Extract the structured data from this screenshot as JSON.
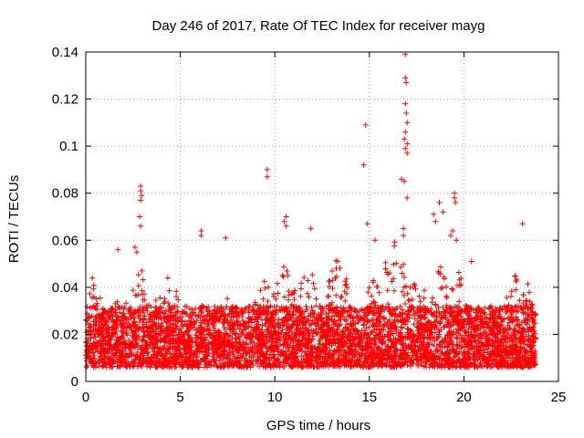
{
  "chart_data": {
    "type": "scatter",
    "title": "Day 246 of 2017, Rate Of TEC Index for receiver mayg",
    "xlabel": "GPS time / hours",
    "ylabel": "ROTI / TECUs",
    "xlim": [
      0,
      25
    ],
    "ylim": [
      0,
      0.14
    ],
    "xticks": [
      0,
      5,
      10,
      15,
      20,
      25
    ],
    "yticks": [
      0,
      0.02,
      0.04,
      0.06,
      0.08,
      0.1,
      0.12,
      0.14
    ],
    "xtick_labels": [
      "0",
      "5",
      "10",
      "15",
      "20",
      "25"
    ],
    "ytick_labels": [
      "0",
      "0.02",
      "0.04",
      "0.06",
      "0.08",
      "0.1",
      "0.12",
      "0.14"
    ],
    "grid": true,
    "marker": "+",
    "color": "#ff0000",
    "series": [
      {
        "name": "ROTI",
        "data_note": "dense band of ~10000 samples between 0.005 and 0.035 over 0-23.8 h; notable excursions listed",
        "excursions": [
          [
            2.9,
            0.083
          ],
          [
            2.9,
            0.081
          ],
          [
            2.95,
            0.079
          ],
          [
            2.9,
            0.077
          ],
          [
            2.85,
            0.07
          ],
          [
            2.9,
            0.066
          ],
          [
            2.6,
            0.057
          ],
          [
            2.7,
            0.055
          ],
          [
            1.7,
            0.056
          ],
          [
            6.1,
            0.064
          ],
          [
            6.1,
            0.062
          ],
          [
            7.4,
            0.061
          ],
          [
            9.6,
            0.09
          ],
          [
            9.6,
            0.087
          ],
          [
            10.6,
            0.07
          ],
          [
            10.5,
            0.068
          ],
          [
            10.6,
            0.066
          ],
          [
            11.9,
            0.065
          ],
          [
            14.8,
            0.109
          ],
          [
            14.7,
            0.092
          ],
          [
            14.9,
            0.067
          ],
          [
            15.3,
            0.06
          ],
          [
            16.9,
            0.139
          ],
          [
            16.9,
            0.129
          ],
          [
            16.95,
            0.127
          ],
          [
            16.9,
            0.118
          ],
          [
            16.95,
            0.114
          ],
          [
            17.0,
            0.11
          ],
          [
            16.9,
            0.106
          ],
          [
            16.85,
            0.103
          ],
          [
            17.0,
            0.101
          ],
          [
            16.9,
            0.099
          ],
          [
            17.0,
            0.097
          ],
          [
            16.7,
            0.086
          ],
          [
            16.85,
            0.085
          ],
          [
            17.0,
            0.078
          ],
          [
            16.8,
            0.065
          ],
          [
            16.8,
            0.062
          ],
          [
            18.7,
            0.076
          ],
          [
            18.9,
            0.072
          ],
          [
            18.4,
            0.071
          ],
          [
            18.5,
            0.068
          ],
          [
            19.5,
            0.08
          ],
          [
            19.5,
            0.078
          ],
          [
            19.55,
            0.076
          ],
          [
            19.4,
            0.064
          ],
          [
            19.6,
            0.06
          ],
          [
            19.3,
            0.062
          ],
          [
            23.1,
            0.067
          ],
          [
            20.4,
            0.051
          ]
        ]
      }
    ]
  }
}
